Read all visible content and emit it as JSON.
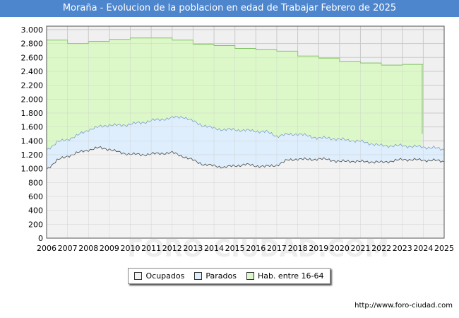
{
  "title": "Moraña - Evolucion de la poblacion en edad de Trabajar Febrero de 2025",
  "source": "http://www.foro-ciudad.com",
  "watermark": "FORO-CIUDAD.COM",
  "colors": {
    "title_bg": "#4e86cd",
    "hab_fill": "#ddf8c8",
    "hab_line": "#80c060",
    "parados_fill": "#deeefc",
    "parados_line": "#7b9fcf",
    "ocupados_fill": "#f2f2f2",
    "ocupados_line": "#444444",
    "plot_bg": "#f0f0f0",
    "grid": "#cccccc"
  },
  "chart_data": {
    "type": "area",
    "title": "Moraña - Evolucion de la poblacion en edad de Trabajar Febrero de 2025",
    "xlabel": "",
    "ylabel": "",
    "xlim": [
      2006,
      2025
    ],
    "ylim": [
      0,
      3050
    ],
    "x_ticks": [
      "2006",
      "2007",
      "2008",
      "2009",
      "2010",
      "2011",
      "2012",
      "2013",
      "2014",
      "2015",
      "2016",
      "2017",
      "2018",
      "2019",
      "2020",
      "2021",
      "2022",
      "2023",
      "2024",
      "2025"
    ],
    "y_ticks": [
      {
        "v": 0,
        "label": "0"
      },
      {
        "v": 200,
        "label": "200"
      },
      {
        "v": 400,
        "label": "400"
      },
      {
        "v": 600,
        "label": "600"
      },
      {
        "v": 800,
        "label": "800"
      },
      {
        "v": 1000,
        "label": "1.000"
      },
      {
        "v": 1200,
        "label": "1.200"
      },
      {
        "v": 1400,
        "label": "1.400"
      },
      {
        "v": 1600,
        "label": "1.600"
      },
      {
        "v": 1800,
        "label": "1.800"
      },
      {
        "v": 2000,
        "label": "2.000"
      },
      {
        "v": 2200,
        "label": "2.200"
      },
      {
        "v": 2400,
        "label": "2.400"
      },
      {
        "v": 2600,
        "label": "2.600"
      },
      {
        "v": 2800,
        "label": "2.800"
      },
      {
        "v": 3000,
        "label": "3.000"
      }
    ],
    "legend": [
      "Ocupados",
      "Parados",
      "Hab. entre 16-64"
    ],
    "legend_position": "bottom-center",
    "series": [
      {
        "name": "Hab. entre 16-64",
        "kind": "step",
        "x": [
          2006,
          2007,
          2008,
          2009,
          2010,
          2011,
          2012,
          2013,
          2014,
          2015,
          2016,
          2017,
          2018,
          2019,
          2020,
          2021,
          2022,
          2023,
          2024
        ],
        "values": [
          2850,
          2800,
          2830,
          2860,
          2880,
          2880,
          2850,
          2790,
          2770,
          2730,
          2710,
          2690,
          2620,
          2590,
          2540,
          2520,
          2490,
          2500,
          2500
        ],
        "end_x": 2023.95,
        "end_drop": 1500
      },
      {
        "name": "Parados",
        "kind": "line",
        "x": [
          2006,
          2006.5,
          2007,
          2007.5,
          2008,
          2008.5,
          2009,
          2009.5,
          2010,
          2010.5,
          2011,
          2011.5,
          2012,
          2012.5,
          2013,
          2013.5,
          2014,
          2014.5,
          2015,
          2015.5,
          2016,
          2016.5,
          2017,
          2017.5,
          2018,
          2018.5,
          2019,
          2019.5,
          2020,
          2020.5,
          2021,
          2021.5,
          2022,
          2022.5,
          2023,
          2023.5,
          2024,
          2024.5,
          2025
        ],
        "values": [
          1270,
          1380,
          1420,
          1480,
          1560,
          1600,
          1630,
          1620,
          1640,
          1660,
          1690,
          1710,
          1730,
          1750,
          1680,
          1620,
          1580,
          1560,
          1560,
          1550,
          1540,
          1530,
          1470,
          1490,
          1500,
          1470,
          1440,
          1440,
          1420,
          1410,
          1390,
          1360,
          1330,
          1330,
          1330,
          1320,
          1310,
          1300,
          1270
        ]
      },
      {
        "name": "Ocupados",
        "kind": "line",
        "x": [
          2006,
          2006.5,
          2007,
          2007.5,
          2008,
          2008.5,
          2009,
          2009.5,
          2010,
          2010.5,
          2011,
          2011.5,
          2012,
          2012.5,
          2013,
          2013.5,
          2014,
          2014.5,
          2015,
          2015.5,
          2016,
          2016.5,
          2017,
          2017.5,
          2018,
          2018.5,
          2019,
          2019.5,
          2020,
          2020.5,
          2021,
          2021.5,
          2022,
          2022.5,
          2023,
          2023.5,
          2024,
          2024.5,
          2025
        ],
        "values": [
          990,
          1120,
          1180,
          1230,
          1270,
          1300,
          1280,
          1230,
          1210,
          1200,
          1210,
          1220,
          1230,
          1180,
          1120,
          1060,
          1040,
          1020,
          1040,
          1060,
          1040,
          1030,
          1050,
          1120,
          1140,
          1130,
          1140,
          1130,
          1100,
          1110,
          1100,
          1100,
          1090,
          1110,
          1130,
          1130,
          1120,
          1120,
          1100
        ]
      }
    ]
  }
}
